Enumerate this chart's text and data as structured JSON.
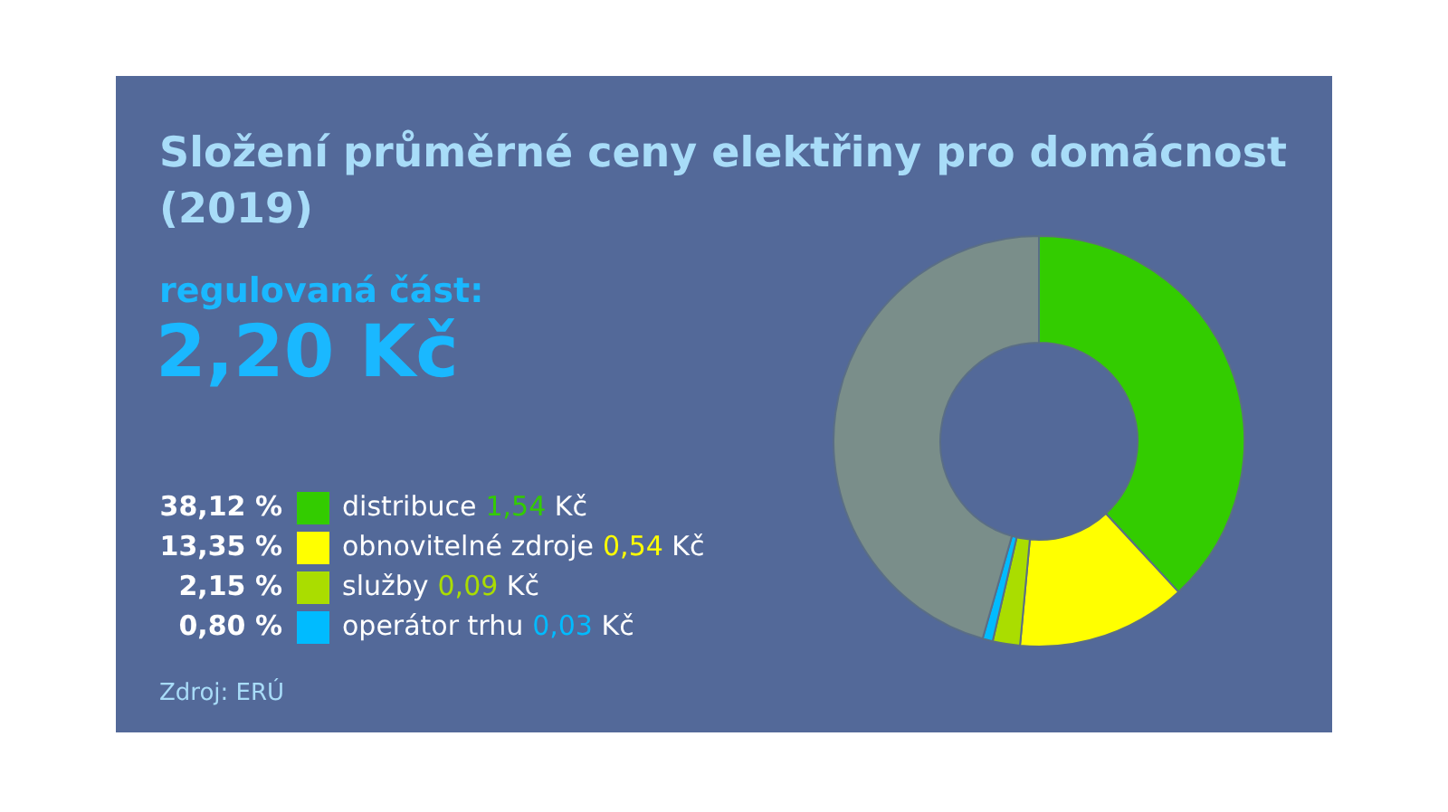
{
  "chart_data": {
    "type": "donut",
    "title": "Složení průměrné ceny elektřiny pro domácnost (2019)",
    "categories": [
      "distribuce",
      "obnovitelné zdroje",
      "služby",
      "operátor trhu",
      null
    ],
    "values": [
      38.12,
      13.35,
      2.15,
      0.8,
      45.58
    ],
    "colors": [
      "#33cc00",
      "#ffff00",
      "#aadd00",
      "#00bbff",
      "#7a8e8a"
    ],
    "value_labels": [
      "38,12 %",
      "13,35 %",
      "2,15 %",
      "0,80 %",
      null
    ],
    "legend": "left",
    "annotations": [
      "regulovaná část:",
      "2,20 Kč",
      "1,54 Kč",
      "0,54 Kč",
      "0,09 Kč",
      "0,03 Kč",
      "Zdroj: ERÚ"
    ]
  }
}
